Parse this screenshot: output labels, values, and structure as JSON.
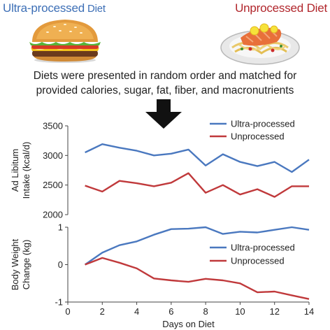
{
  "header": {
    "left_title_main": "Ultra-processed",
    "left_title_small": " Diet",
    "right_title": "Unprocessed Diet",
    "caption_line1": "Diets were presented in random order and matched for",
    "caption_line2": "provided calories, sugar, fat, fiber, and macronutrients"
  },
  "icons": {
    "left": "burger-icon",
    "right": "salmon-pasta-plate-icon",
    "arrow": "down-arrow-icon"
  },
  "colors": {
    "ultra": "#4a78bf",
    "unprocessed": "#c0393b",
    "axis": "#444444"
  },
  "chart_data": [
    {
      "type": "line",
      "ylabel_line1": "Ad Libitum",
      "ylabel_line2": "Intake (kcal/d)",
      "xlabel": "",
      "x": [
        1,
        2,
        3,
        4,
        5,
        6,
        7,
        8,
        9,
        10,
        11,
        12,
        13,
        14
      ],
      "xlim": [
        0,
        14
      ],
      "ylim": [
        2000,
        3500
      ],
      "yticks": [
        2000,
        2500,
        3000,
        3500
      ],
      "ytick_labels": [
        "2000",
        "2500",
        "3000",
        "3500"
      ],
      "legend_position": "top-right",
      "series": [
        {
          "name": "Ultra-processed",
          "values": [
            3050,
            3190,
            3130,
            3080,
            3000,
            3030,
            3100,
            2830,
            3020,
            2890,
            2820,
            2890,
            2720,
            2930
          ]
        },
        {
          "name": "Unprocessed",
          "values": [
            2490,
            2390,
            2570,
            2530,
            2480,
            2540,
            2700,
            2370,
            2500,
            2340,
            2430,
            2300,
            2480,
            2480
          ]
        }
      ]
    },
    {
      "type": "line",
      "ylabel_line1": "Body Weight",
      "ylabel_line2": "Change (kg)",
      "xlabel": "Days on Diet",
      "x": [
        1,
        2,
        3,
        4,
        5,
        6,
        7,
        8,
        9,
        10,
        11,
        12,
        13,
        14
      ],
      "xlim": [
        0,
        14
      ],
      "xticks": [
        0,
        2,
        4,
        6,
        8,
        10,
        12,
        14
      ],
      "xtick_labels": [
        "0",
        "2",
        "4",
        "6",
        "8",
        "10",
        "12",
        "14"
      ],
      "ylim": [
        -1,
        1
      ],
      "yticks": [
        -1,
        0,
        1
      ],
      "ytick_labels": [
        "-1",
        "0",
        "1"
      ],
      "legend_position": "right-middle",
      "series": [
        {
          "name": "Ultra-processed",
          "values": [
            0.0,
            0.32,
            0.52,
            0.62,
            0.8,
            0.95,
            0.96,
            1.0,
            0.82,
            0.88,
            0.86,
            0.93,
            1.0,
            0.93
          ]
        },
        {
          "name": "Unprocessed",
          "values": [
            0.0,
            0.18,
            0.05,
            -0.1,
            -0.37,
            -0.42,
            -0.46,
            -0.38,
            -0.42,
            -0.5,
            -0.74,
            -0.72,
            -0.82,
            -0.92
          ]
        }
      ]
    }
  ]
}
